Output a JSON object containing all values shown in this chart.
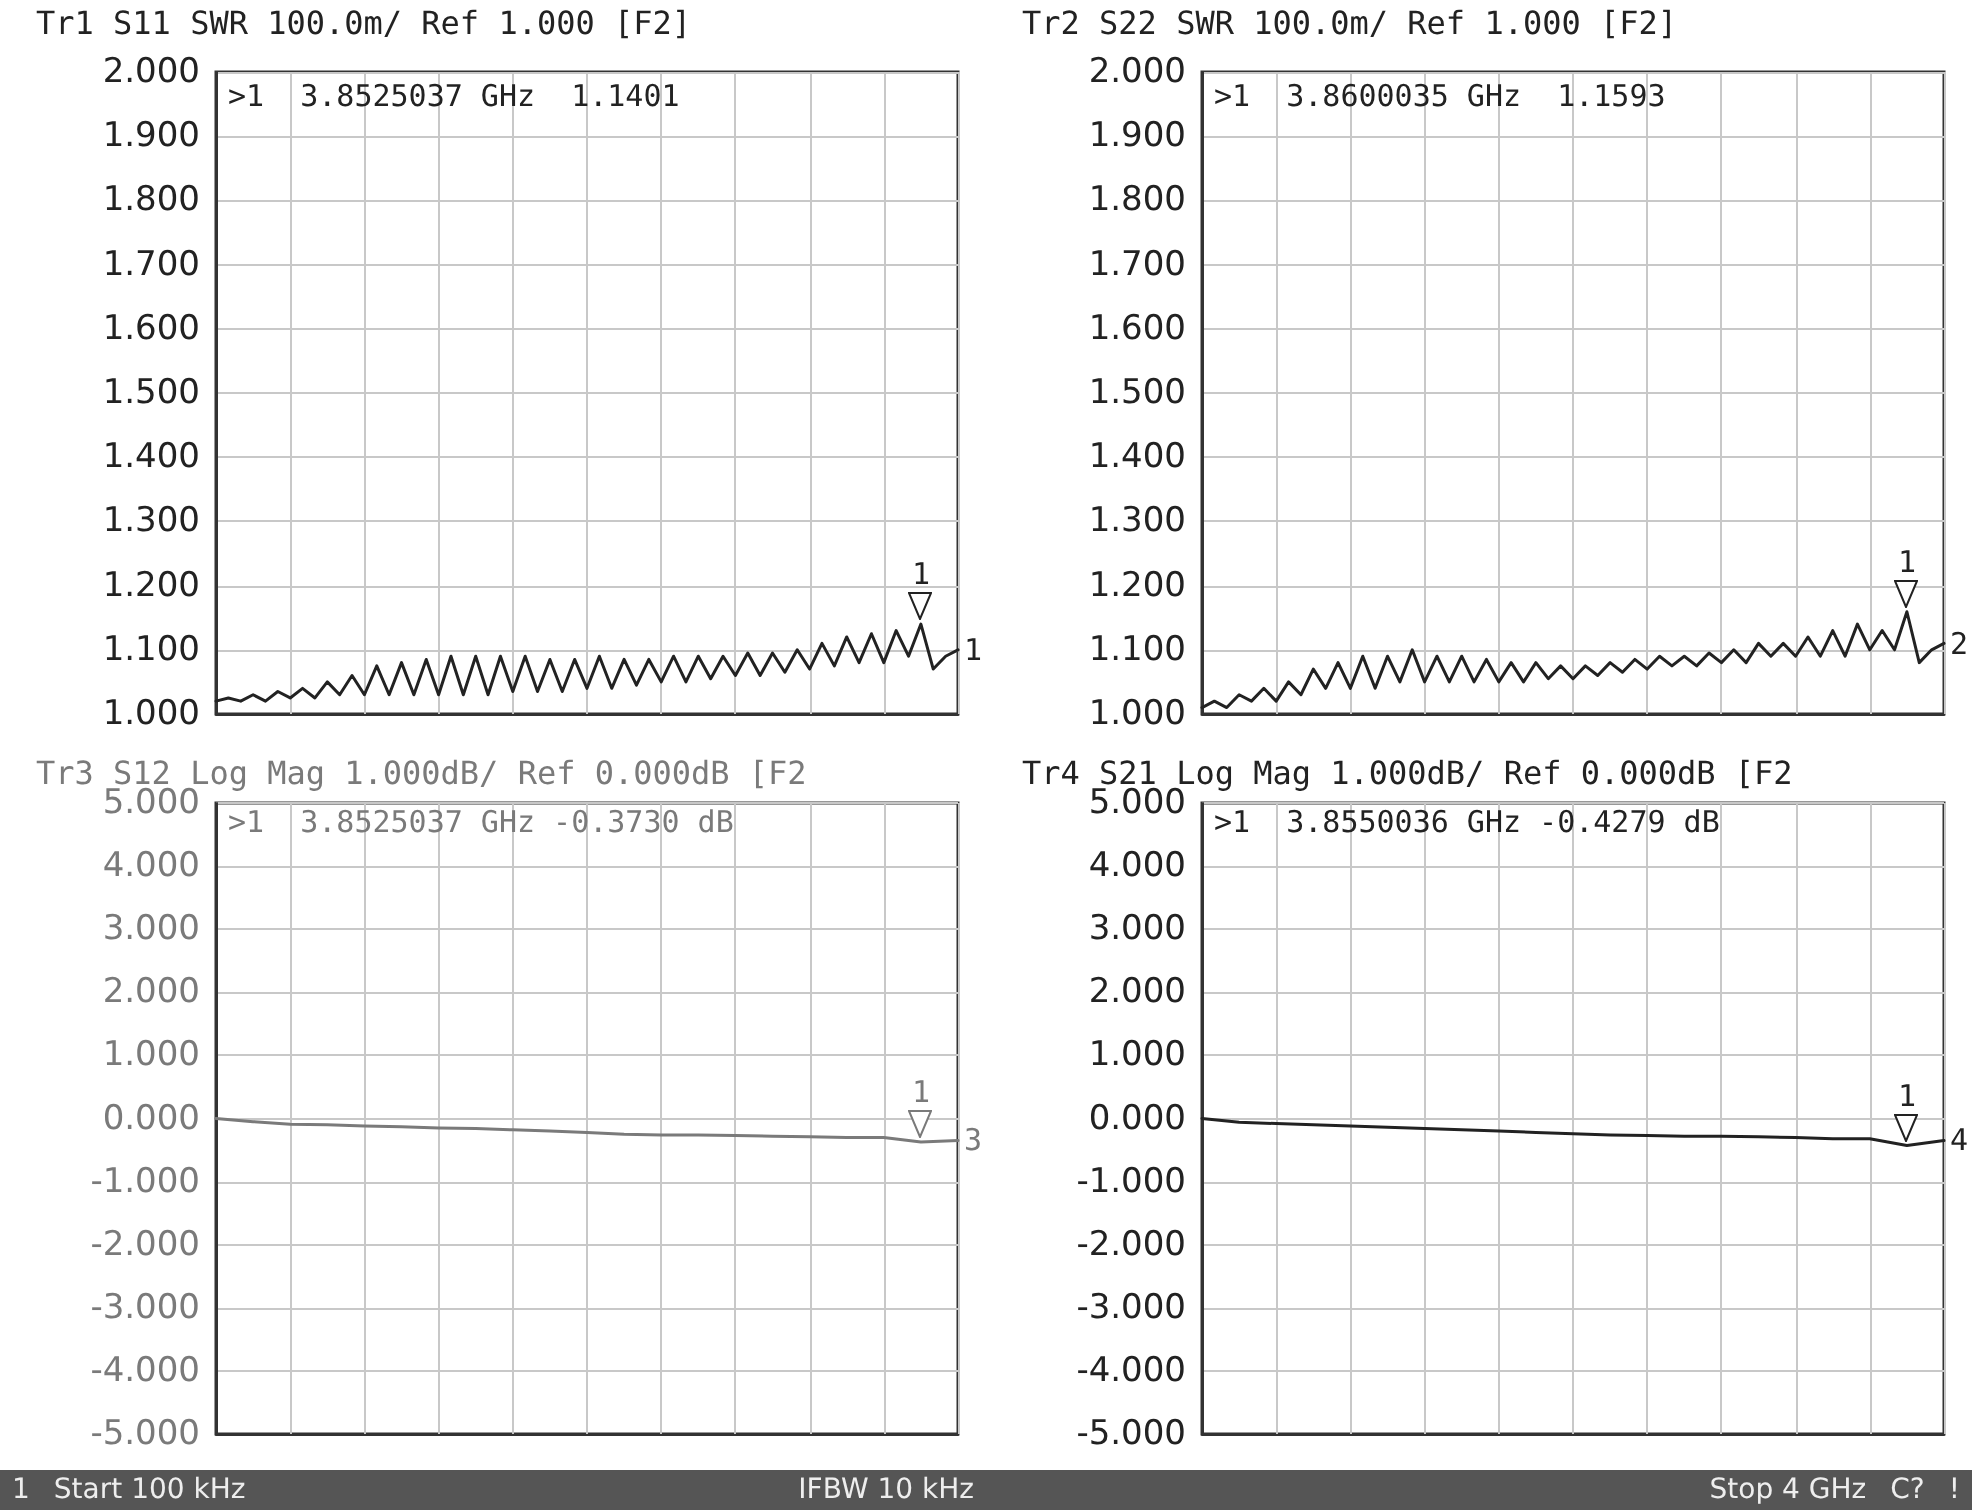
{
  "chart_data": [
    {
      "type": "line",
      "title": "Tr1 S11 SWR 100.0m/ Ref 1.000 [F2]",
      "categories": [
        null,
        null,
        null,
        null,
        null,
        null,
        null,
        null,
        null,
        null,
        null,
        null,
        null,
        null,
        null,
        null,
        null,
        null,
        null,
        null,
        null,
        null,
        null,
        null,
        null,
        null,
        null,
        null,
        null,
        null,
        null,
        null,
        null,
        null,
        null,
        null,
        null,
        null,
        null,
        null,
        null,
        null,
        null,
        null,
        null,
        null,
        null,
        null,
        null,
        null,
        null,
        null,
        null,
        null,
        null,
        null,
        null,
        null,
        null,
        null,
        null
      ],
      "series": [
        {
          "color": "#222222",
          "values": [
            1.02,
            1.025,
            1.02,
            1.03,
            1.02,
            1.035,
            1.025,
            1.04,
            1.025,
            1.05,
            1.03,
            1.06,
            1.03,
            1.075,
            1.03,
            1.08,
            1.03,
            1.085,
            1.03,
            1.09,
            1.03,
            1.09,
            1.03,
            1.09,
            1.035,
            1.09,
            1.035,
            1.085,
            1.035,
            1.085,
            1.04,
            1.09,
            1.04,
            1.085,
            1.045,
            1.085,
            1.05,
            1.09,
            1.05,
            1.09,
            1.055,
            1.09,
            1.06,
            1.095,
            1.06,
            1.095,
            1.065,
            1.1,
            1.07,
            1.11,
            1.075,
            1.12,
            1.08,
            1.125,
            1.08,
            1.13,
            1.09,
            1.1401,
            1.07,
            1.09,
            1.1
          ]
        }
      ],
      "ylim": [
        1,
        2
      ],
      "yticks": [
        {
          "value": 1,
          "label": "1.000"
        },
        {
          "value": 1.1,
          "label": "1.100"
        },
        {
          "value": 1.2,
          "label": "1.200"
        },
        {
          "value": 1.3,
          "label": "1.300"
        },
        {
          "value": 1.4,
          "label": "1.400"
        },
        {
          "value": 1.5,
          "label": "1.500"
        },
        {
          "value": 1.6,
          "label": "1.600"
        },
        {
          "value": 1.7,
          "label": "1.700"
        },
        {
          "value": 1.8,
          "label": "1.800"
        },
        {
          "value": 1.9,
          "label": "1.900"
        },
        {
          "value": 2,
          "label": "2.000"
        }
      ],
      "tick_labels": "y",
      "grid": true,
      "marker": "none",
      "line_style": "solid",
      "annotations": [
        ">1  3.8525037 GHz  1.1401",
        "1",
        "1"
      ]
    },
    {
      "type": "line",
      "title": "Tr2 S22 SWR 100.0m/ Ref 1.000 [F2]",
      "categories": [
        null,
        null,
        null,
        null,
        null,
        null,
        null,
        null,
        null,
        null,
        null,
        null,
        null,
        null,
        null,
        null,
        null,
        null,
        null,
        null,
        null,
        null,
        null,
        null,
        null,
        null,
        null,
        null,
        null,
        null,
        null,
        null,
        null,
        null,
        null,
        null,
        null,
        null,
        null,
        null,
        null,
        null,
        null,
        null,
        null,
        null,
        null,
        null,
        null,
        null,
        null,
        null,
        null,
        null,
        null,
        null,
        null,
        null,
        null,
        null,
        null
      ],
      "series": [
        {
          "color": "#222222",
          "values": [
            1.01,
            1.02,
            1.01,
            1.03,
            1.02,
            1.04,
            1.02,
            1.05,
            1.03,
            1.07,
            1.04,
            1.08,
            1.04,
            1.09,
            1.04,
            1.09,
            1.05,
            1.1,
            1.05,
            1.09,
            1.05,
            1.09,
            1.05,
            1.085,
            1.05,
            1.08,
            1.05,
            1.08,
            1.055,
            1.075,
            1.055,
            1.075,
            1.06,
            1.08,
            1.065,
            1.085,
            1.07,
            1.09,
            1.075,
            1.09,
            1.075,
            1.095,
            1.08,
            1.1,
            1.08,
            1.11,
            1.09,
            1.11,
            1.09,
            1.12,
            1.09,
            1.13,
            1.09,
            1.14,
            1.1,
            1.13,
            1.1,
            1.1593,
            1.08,
            1.1,
            1.11
          ]
        }
      ],
      "ylim": [
        1,
        2
      ],
      "yticks": [
        {
          "value": 1,
          "label": "1.000"
        },
        {
          "value": 1.1,
          "label": "1.100"
        },
        {
          "value": 1.2,
          "label": "1.200"
        },
        {
          "value": 1.3,
          "label": "1.300"
        },
        {
          "value": 1.4,
          "label": "1.400"
        },
        {
          "value": 1.5,
          "label": "1.500"
        },
        {
          "value": 1.6,
          "label": "1.600"
        },
        {
          "value": 1.7,
          "label": "1.700"
        },
        {
          "value": 1.8,
          "label": "1.800"
        },
        {
          "value": 1.9,
          "label": "1.900"
        },
        {
          "value": 2,
          "label": "2.000"
        }
      ],
      "tick_labels": "y",
      "grid": true,
      "marker": "none",
      "line_style": "solid",
      "annotations": [
        ">1  3.8600035 GHz  1.1593",
        "1",
        "2"
      ]
    },
    {
      "type": "line",
      "title": "Tr3 S12 Log Mag 1.000dB/ Ref 0.000dB [F2",
      "categories": [
        null,
        null,
        null,
        null,
        null,
        null,
        null,
        null,
        null,
        null,
        null,
        null,
        null,
        null,
        null,
        null,
        null,
        null,
        null,
        null,
        null
      ],
      "series": [
        {
          "color": "#7a7a7a",
          "values": [
            0,
            -0.05,
            -0.09,
            -0.1,
            -0.12,
            -0.13,
            -0.15,
            -0.16,
            -0.18,
            -0.2,
            -0.22,
            -0.25,
            -0.26,
            -0.26,
            -0.27,
            -0.28,
            -0.29,
            -0.3,
            -0.3,
            -0.373,
            -0.35
          ]
        }
      ],
      "ylim": [
        -5,
        5
      ],
      "yticks": [
        {
          "value": -5,
          "label": "-5.000"
        },
        {
          "value": -4,
          "label": "-4.000"
        },
        {
          "value": -3,
          "label": "-3.000"
        },
        {
          "value": -2,
          "label": "-2.000"
        },
        {
          "value": -1,
          "label": "-1.000"
        },
        {
          "value": 0,
          "label": "0.000"
        },
        {
          "value": 1,
          "label": "1.000"
        },
        {
          "value": 2,
          "label": "2.000"
        },
        {
          "value": 3,
          "label": "3.000"
        },
        {
          "value": 4,
          "label": "4.000"
        },
        {
          "value": 5,
          "label": "5.000"
        }
      ],
      "tick_labels": "y",
      "grid": true,
      "marker": "none",
      "line_style": "solid",
      "annotations": [
        ">1  3.8525037 GHz -0.3730 dB",
        "1",
        "3",
        "1",
        "Start 100 kHz",
        "IFBW 10 kHz"
      ]
    },
    {
      "type": "line",
      "title": "Tr4 S21 Log Mag 1.000dB/ Ref 0.000dB [F2",
      "categories": [
        null,
        null,
        null,
        null,
        null,
        null,
        null,
        null,
        null,
        null,
        null,
        null,
        null,
        null,
        null,
        null,
        null,
        null,
        null,
        null,
        null
      ],
      "series": [
        {
          "color": "#222222",
          "values": [
            0,
            -0.06,
            -0.08,
            -0.1,
            -0.12,
            -0.14,
            -0.16,
            -0.18,
            -0.2,
            -0.22,
            -0.24,
            -0.26,
            -0.27,
            -0.28,
            -0.28,
            -0.29,
            -0.3,
            -0.32,
            -0.32,
            -0.4279,
            -0.35
          ]
        }
      ],
      "ylim": [
        -5,
        5
      ],
      "yticks": [
        {
          "value": -5,
          "label": "-5.000"
        },
        {
          "value": -4,
          "label": "-4.000"
        },
        {
          "value": -3,
          "label": "-3.000"
        },
        {
          "value": -2,
          "label": "-2.000"
        },
        {
          "value": -1,
          "label": "-1.000"
        },
        {
          "value": 0,
          "label": "0.000"
        },
        {
          "value": 1,
          "label": "1.000"
        },
        {
          "value": 2,
          "label": "2.000"
        },
        {
          "value": 3,
          "label": "3.000"
        },
        {
          "value": 4,
          "label": "4.000"
        },
        {
          "value": 5,
          "label": "5.000"
        }
      ],
      "tick_labels": "y",
      "grid": true,
      "marker": "none",
      "line_style": "solid",
      "annotations": [
        ">1  3.8550036 GHz -0.4279 dB",
        "1",
        "4",
        "Stop 4 GHz",
        "C?",
        "!"
      ]
    }
  ]
}
